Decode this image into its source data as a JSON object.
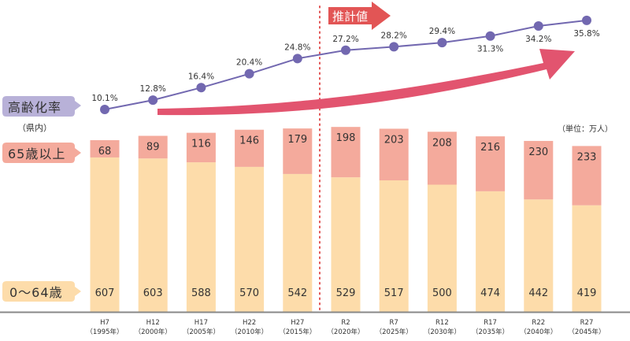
{
  "chart_data": {
    "type": "bar",
    "stacked": true,
    "categories": [
      {
        "era": "H7",
        "year": "（1995年）"
      },
      {
        "era": "H12",
        "year": "（2000年）"
      },
      {
        "era": "H17",
        "year": "（2005年）"
      },
      {
        "era": "H22",
        "year": "（2010年）"
      },
      {
        "era": "H27",
        "year": "（2015年）"
      },
      {
        "era": "R2",
        "year": "（2020年）"
      },
      {
        "era": "R7",
        "year": "（2025年）"
      },
      {
        "era": "R12",
        "year": "（2030年）"
      },
      {
        "era": "R17",
        "year": "（2035年）"
      },
      {
        "era": "R22",
        "year": "（2040年）"
      },
      {
        "era": "R27",
        "year": "（2045年）"
      }
    ],
    "series": [
      {
        "name": "0〜64歳",
        "color": "#fddcaa",
        "values": [
          607,
          603,
          588,
          570,
          542,
          529,
          517,
          500,
          474,
          442,
          419
        ]
      },
      {
        "name": "65歳以上",
        "color": "#f4aa9c",
        "values": [
          68,
          89,
          116,
          146,
          179,
          198,
          203,
          208,
          216,
          230,
          233
        ]
      }
    ],
    "line": {
      "name": "高齢化率",
      "sub_label": "（県内）",
      "color": "#7268b0",
      "values": [
        10.1,
        12.8,
        16.4,
        20.4,
        24.8,
        27.2,
        28.2,
        29.4,
        31.3,
        34.2,
        35.8
      ],
      "labels": [
        "10.1%",
        "12.8%",
        "16.4%",
        "20.4%",
        "24.8%",
        "27.2%",
        "28.2%",
        "29.4%",
        "31.3%",
        "34.2%",
        "35.8%"
      ]
    },
    "unit": "（単位：万人）",
    "projection_label": "推計値",
    "projection_start_index": 5,
    "colors": {
      "line_label_bg": "#b8b1d8",
      "senior_label_bg": "#f4aa9c",
      "young_label_bg": "#fddcaa",
      "arrow": "#e2546f",
      "projection": "#e25555"
    }
  }
}
